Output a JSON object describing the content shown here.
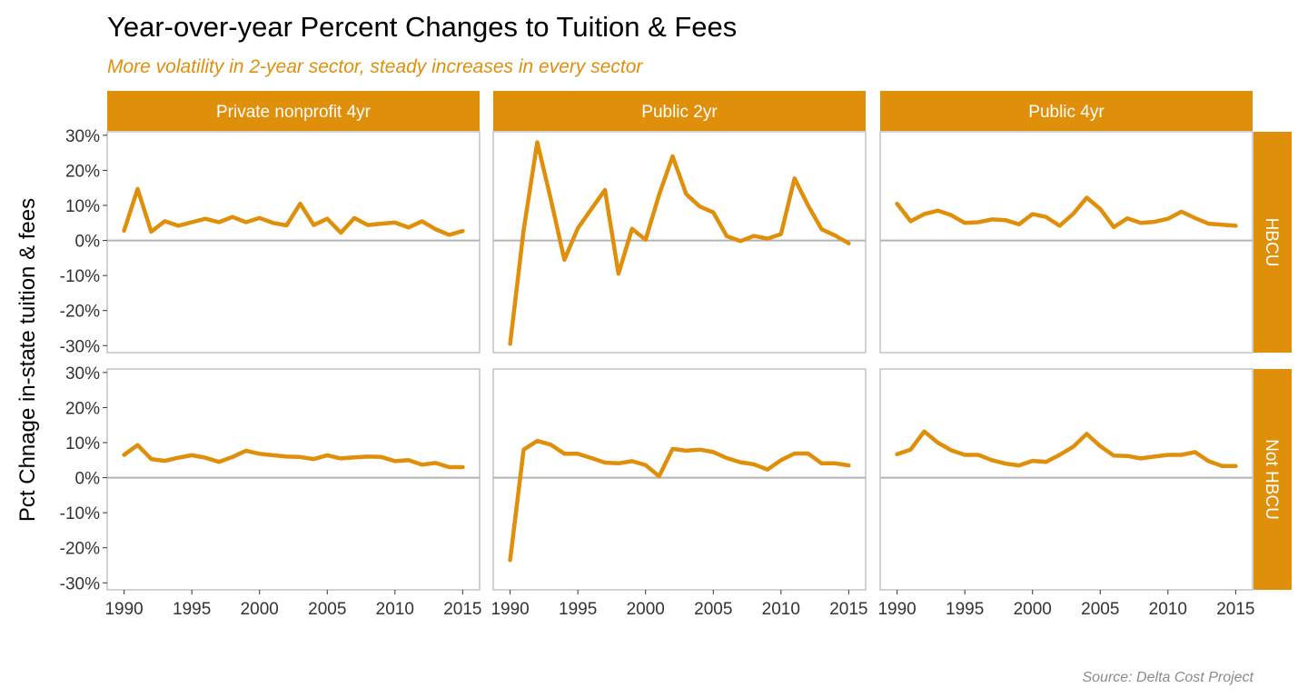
{
  "colors": {
    "accent": "#E08F0B",
    "strip_text": "#FFFFFF",
    "frame": "#B3B3B3",
    "zero_line": "#B3B3B3",
    "caption": "#8A8A8A"
  },
  "chart_data": {
    "type": "line",
    "title": "Year-over-year Percent Changes to Tuition & Fees",
    "subtitle": "More volatility in 2-year sector, steady increases in every sector",
    "caption": "Source: Delta Cost Project",
    "ylabel": "Pct Chnage in-state tuition & fees",
    "xlabel": "",
    "xlim": [
      1990,
      2015
    ],
    "ylim": [
      -0.32,
      0.31
    ],
    "x_ticks": [
      1990,
      1995,
      2000,
      2005,
      2010,
      2015
    ],
    "x_tick_labels": [
      "1990",
      "1995",
      "2000",
      "2005",
      "2010",
      "2015"
    ],
    "y_ticks": [
      -0.3,
      -0.2,
      -0.1,
      0,
      0.1,
      0.2,
      0.3
    ],
    "y_tick_labels": [
      "-30%",
      "-20%",
      "-10%",
      "0%",
      "10%",
      "20%",
      "30%"
    ],
    "reference_line_y": 0,
    "grid": false,
    "legend": "none",
    "facet_columns": [
      "Private nonprofit 4yr",
      "Public 2yr",
      "Public 4yr"
    ],
    "facet_rows": [
      "HBCU",
      "Not HBCU"
    ],
    "x": [
      1990,
      1991,
      1992,
      1993,
      1994,
      1995,
      1996,
      1997,
      1998,
      1999,
      2000,
      2001,
      2002,
      2003,
      2004,
      2005,
      2006,
      2007,
      2008,
      2009,
      2010,
      2011,
      2012,
      2013,
      2014,
      2015
    ],
    "panels": [
      {
        "row": "HBCU",
        "column": "Private nonprofit 4yr",
        "values": [
          0.028,
          0.147,
          0.025,
          0.055,
          0.042,
          0.052,
          0.062,
          0.052,
          0.067,
          0.052,
          0.064,
          0.05,
          0.043,
          0.105,
          0.044,
          0.062,
          0.022,
          0.064,
          0.044,
          0.048,
          0.051,
          0.037,
          0.055,
          0.032,
          0.016,
          0.027
        ]
      },
      {
        "row": "HBCU",
        "column": "Public 2yr",
        "values": [
          -0.295,
          0.03,
          0.28,
          0.118,
          -0.055,
          0.035,
          0.09,
          0.144,
          -0.095,
          0.033,
          0.002,
          0.13,
          0.24,
          0.132,
          0.097,
          0.08,
          0.012,
          -0.002,
          0.013,
          0.005,
          0.018,
          0.177,
          0.1,
          0.032,
          0.014,
          -0.008
        ]
      },
      {
        "row": "HBCU",
        "column": "Public 4yr",
        "values": [
          0.105,
          0.055,
          0.075,
          0.085,
          0.072,
          0.05,
          0.052,
          0.06,
          0.058,
          0.046,
          0.075,
          0.067,
          0.042,
          0.076,
          0.122,
          0.09,
          0.038,
          0.063,
          0.05,
          0.053,
          0.062,
          0.082,
          0.064,
          0.048,
          0.045,
          0.042
        ]
      },
      {
        "row": "Not HBCU",
        "column": "Private nonprofit 4yr",
        "values": [
          0.065,
          0.093,
          0.053,
          0.048,
          0.057,
          0.064,
          0.057,
          0.045,
          0.059,
          0.077,
          0.068,
          0.064,
          0.06,
          0.059,
          0.053,
          0.064,
          0.055,
          0.058,
          0.06,
          0.059,
          0.047,
          0.05,
          0.037,
          0.042,
          0.03,
          0.03
        ]
      },
      {
        "row": "Not HBCU",
        "column": "Public 2yr",
        "values": [
          -0.235,
          0.08,
          0.105,
          0.094,
          0.068,
          0.068,
          0.056,
          0.043,
          0.041,
          0.047,
          0.036,
          0.004,
          0.082,
          0.077,
          0.08,
          0.073,
          0.056,
          0.044,
          0.038,
          0.023,
          0.05,
          0.069,
          0.069,
          0.041,
          0.041,
          0.035
        ]
      },
      {
        "row": "Not HBCU",
        "column": "Public 4yr",
        "values": [
          0.067,
          0.08,
          0.132,
          0.1,
          0.078,
          0.065,
          0.065,
          0.05,
          0.04,
          0.035,
          0.048,
          0.045,
          0.065,
          0.088,
          0.125,
          0.09,
          0.063,
          0.062,
          0.055,
          0.06,
          0.065,
          0.065,
          0.073,
          0.047,
          0.033,
          0.033
        ]
      }
    ]
  }
}
